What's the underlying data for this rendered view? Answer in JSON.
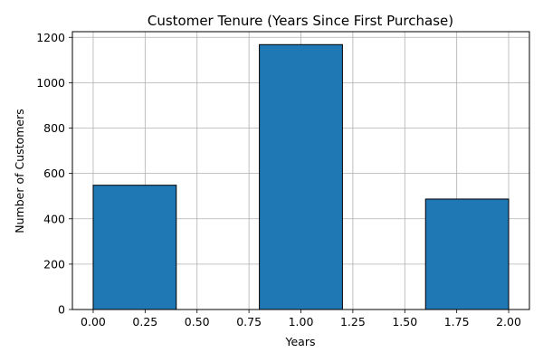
{
  "chart_data": {
    "type": "bar",
    "title": "Customer Tenure (Years Since First Purchase)",
    "xlabel": "Years",
    "ylabel": "Number of Customers",
    "xlim": [
      -0.1,
      2.1
    ],
    "ylim": [
      0,
      1225
    ],
    "xticks": [
      0.0,
      0.25,
      0.5,
      0.75,
      1.0,
      1.25,
      1.5,
      1.75,
      2.0
    ],
    "xtick_labels": [
      "0.00",
      "0.25",
      "0.50",
      "0.75",
      "1.00",
      "1.25",
      "1.50",
      "1.75",
      "2.00"
    ],
    "yticks": [
      0,
      200,
      400,
      600,
      800,
      1000,
      1200
    ],
    "ytick_labels": [
      "0",
      "200",
      "400",
      "600",
      "800",
      "1000",
      "1200"
    ],
    "bins": [
      {
        "x0": 0.0,
        "x1": 0.4,
        "value": 548
      },
      {
        "x0": 0.8,
        "x1": 1.2,
        "value": 1168
      },
      {
        "x0": 1.6,
        "x1": 2.0,
        "value": 487
      }
    ],
    "grid": true,
    "bar_color": "#1f77b4",
    "edge_color": "#000000"
  }
}
